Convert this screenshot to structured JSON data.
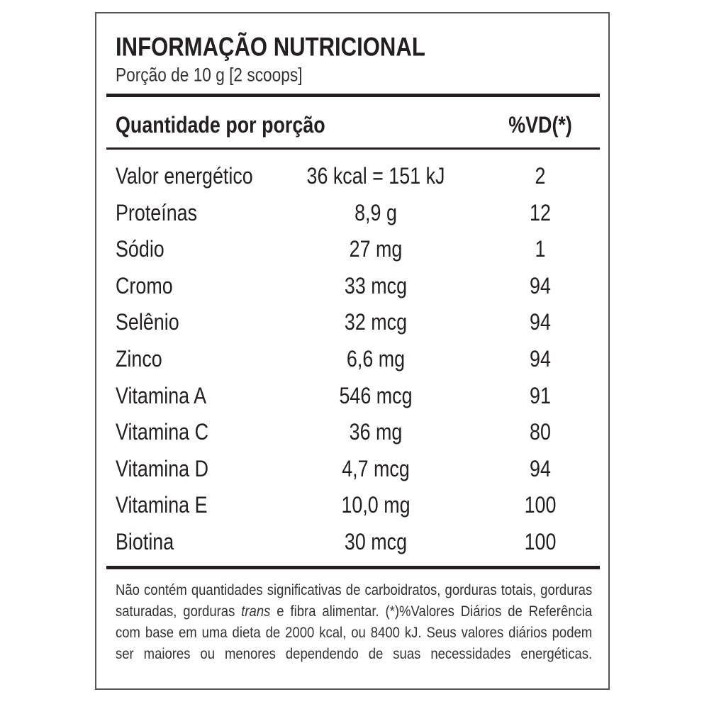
{
  "title": "INFORMAÇÃO NUTRICIONAL",
  "serving": "Porção de 10 g  [2 scoops]",
  "header": {
    "quantity": "Quantidade por porção",
    "dv": "%VD(*)"
  },
  "rows": [
    [
      "Valor energético",
      "36 kcal = 151 kJ",
      "2"
    ],
    [
      "Proteínas",
      "8,9 g",
      "12"
    ],
    [
      "Sódio",
      "27 mg",
      "1"
    ],
    [
      "Cromo",
      "33 mcg",
      "94"
    ],
    [
      "Selênio",
      "32 mcg",
      "94"
    ],
    [
      "Zinco",
      "6,6 mg",
      "94"
    ],
    [
      "Vitamina A",
      "546 mcg",
      "91"
    ],
    [
      "Vitamina C",
      "36 mg",
      "80"
    ],
    [
      "Vitamina D",
      "4,7 mcg",
      "94"
    ],
    [
      "Vitamina E",
      "10,0 mg",
      "100"
    ],
    [
      "Biotina",
      "30 mcg",
      "100"
    ]
  ],
  "footnote": [
    "Não contém quantidades significativas de carboidratos, gorduras totais, gorduras saturadas, gorduras",
    "trans",
    "e fibra alimentar. (*)%Valores Diários de Referência com base em uma dieta de 2000 kcal, ou 8400 kJ. Seus valores diários podem ser maiores ou menores dependendo de suas necessidades energéticas."
  ]
}
